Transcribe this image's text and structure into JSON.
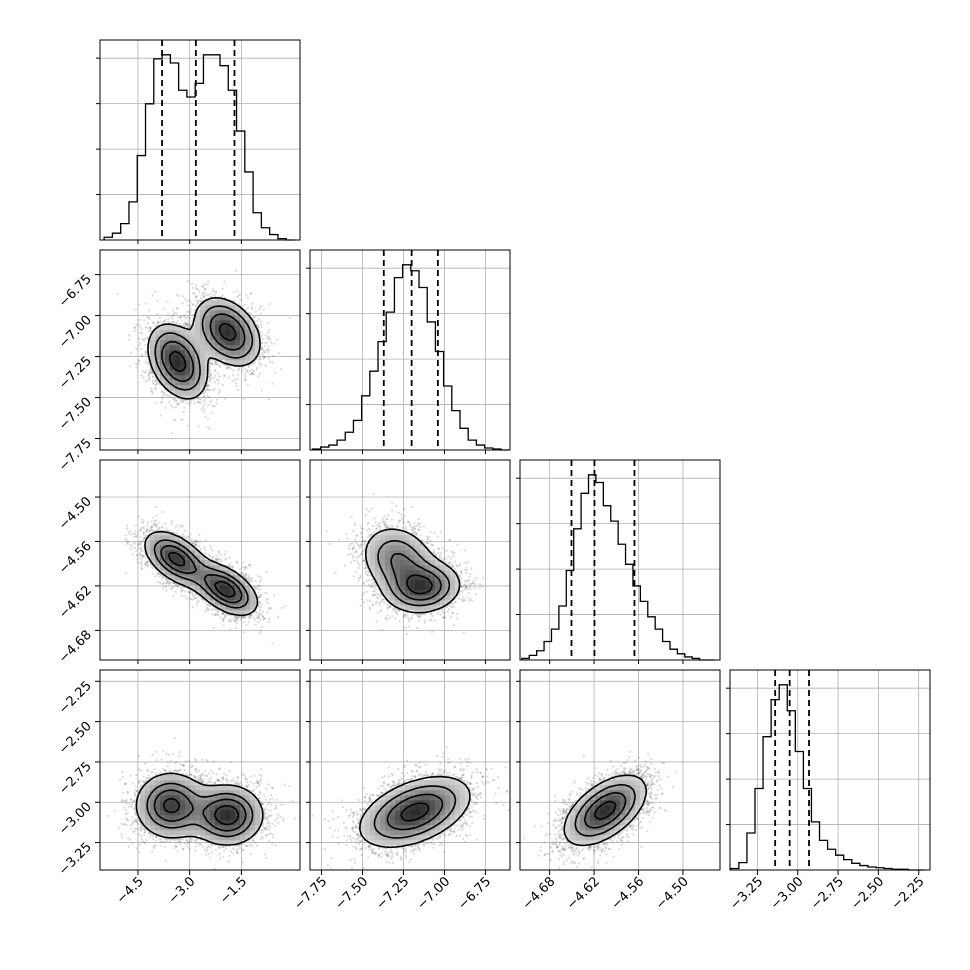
{
  "chart_data": {
    "type": "corner",
    "grid": true,
    "parameters": [
      {
        "range": [
          -5.6,
          0.2
        ],
        "ticks": [
          -4.5,
          -3.0,
          -1.5
        ],
        "tick_labels": [
          "−4.5",
          "−3.0",
          "−1.5"
        ],
        "quantiles": [
          -3.8,
          -2.82,
          -1.7
        ],
        "hist_bin_centers": [
          -5.36,
          -5.12,
          -4.88,
          -4.64,
          -4.4,
          -4.16,
          -3.92,
          -3.68,
          -3.44,
          -3.2,
          -2.96,
          -2.72,
          -2.48,
          -2.24,
          -2.0,
          -1.76,
          -1.52,
          -1.28,
          -1.04,
          -0.8,
          -0.56,
          -0.32,
          -0.08
        ],
        "hist_counts": [
          2,
          5,
          12,
          28,
          62,
          100,
          133,
          136,
          130,
          110,
          105,
          115,
          136,
          136,
          128,
          110,
          80,
          50,
          20,
          9,
          4,
          1,
          0
        ]
      },
      {
        "range": [
          -7.82,
          -6.6
        ],
        "ticks": [
          -7.75,
          -7.5,
          -7.25,
          -7.0,
          -6.75
        ],
        "tick_labels": [
          "−7.75",
          "−7.50",
          "−7.25",
          "−7.00",
          "−6.75"
        ],
        "quantiles": [
          -7.37,
          -7.2,
          -7.04
        ],
        "hist_bin_centers": [
          -7.78,
          -7.73,
          -7.68,
          -7.63,
          -7.58,
          -7.53,
          -7.48,
          -7.43,
          -7.38,
          -7.33,
          -7.28,
          -7.23,
          -7.18,
          -7.13,
          -7.08,
          -7.03,
          -6.98,
          -6.93,
          -6.88,
          -6.83,
          -6.78,
          -6.73,
          -6.68,
          -6.63
        ],
        "hist_counts": [
          1,
          3,
          5,
          10,
          18,
          30,
          55,
          80,
          110,
          140,
          175,
          188,
          182,
          165,
          130,
          100,
          65,
          40,
          22,
          10,
          5,
          2,
          1,
          0
        ]
      },
      {
        "range": [
          -4.72,
          -4.45
        ],
        "ticks": [
          -4.68,
          -4.62,
          -4.56,
          -4.5
        ],
        "tick_labels": [
          "−4.68",
          "−4.62",
          "−4.56",
          "−4.50"
        ],
        "quantiles": [
          -4.6505,
          -4.6195,
          -4.5655
        ],
        "hist_bin_centers": [
          -4.7125,
          -4.7025,
          -4.6925,
          -4.6825,
          -4.6725,
          -4.6625,
          -4.6525,
          -4.6425,
          -4.6325,
          -4.6225,
          -4.6125,
          -4.6025,
          -4.5925,
          -4.5825,
          -4.5725,
          -4.5625,
          -4.5525,
          -4.5425,
          -4.5325,
          -4.5225,
          -4.5125,
          -4.5025,
          -4.4925,
          -4.4825,
          -4.4725,
          -4.4625
        ],
        "hist_counts": [
          1,
          3,
          6,
          12,
          20,
          35,
          58,
          85,
          108,
          120,
          115,
          100,
          90,
          75,
          62,
          48,
          38,
          28,
          20,
          12,
          7,
          4,
          2,
          1,
          0,
          0
        ]
      },
      {
        "range": [
          -3.42,
          -2.18
        ],
        "ticks": [
          -3.25,
          -3.0,
          -2.75,
          -2.5,
          -2.25
        ],
        "tick_labels": [
          "−3.25",
          "−3.00",
          "−2.75",
          "−2.50",
          "−2.25"
        ],
        "quantiles": [
          -3.14,
          -3.05,
          -2.93
        ],
        "hist_bin_centers": [
          -3.39,
          -3.34,
          -3.29,
          -3.24,
          -3.19,
          -3.14,
          -3.09,
          -3.04,
          -2.99,
          -2.94,
          -2.89,
          -2.84,
          -2.79,
          -2.74,
          -2.69,
          -2.64,
          -2.59,
          -2.54,
          -2.49,
          -2.44,
          -2.39,
          -2.34,
          -2.29,
          -2.24
        ],
        "hist_counts": [
          2,
          10,
          50,
          110,
          180,
          230,
          250,
          215,
          160,
          110,
          65,
          40,
          28,
          20,
          14,
          9,
          6,
          4,
          3,
          2,
          1,
          1,
          0,
          0
        ]
      }
    ],
    "pairs": [
      {
        "x": 0,
        "y": 1,
        "modes": [
          {
            "mx": -3.35,
            "my": -7.28,
            "sx": 0.45,
            "sy": 0.12,
            "rho": -0.35,
            "w": 0.5
          },
          {
            "mx": -1.9,
            "my": -7.1,
            "sx": 0.5,
            "sy": 0.11,
            "rho": -0.35,
            "w": 0.5
          }
        ]
      },
      {
        "x": 0,
        "y": 2,
        "modes": [
          {
            "mx": -3.4,
            "my": -4.583,
            "sx": 0.5,
            "sy": 0.02,
            "rho": -0.5,
            "w": 0.5
          },
          {
            "mx": -1.95,
            "my": -4.625,
            "sx": 0.5,
            "sy": 0.019,
            "rho": -0.5,
            "w": 0.5
          }
        ]
      },
      {
        "x": 1,
        "y": 2,
        "modes": [
          {
            "mx": -7.28,
            "my": -4.585,
            "sx": 0.12,
            "sy": 0.025,
            "rho": -0.2,
            "w": 0.5
          },
          {
            "mx": -7.13,
            "my": -4.622,
            "sx": 0.12,
            "sy": 0.018,
            "rho": 0.1,
            "w": 0.5
          }
        ]
      },
      {
        "x": 0,
        "y": 3,
        "modes": [
          {
            "mx": -3.55,
            "my": -3.02,
            "sx": 0.55,
            "sy": 0.11,
            "rho": 0.0,
            "w": 0.5
          },
          {
            "mx": -1.9,
            "my": -3.08,
            "sx": 0.55,
            "sy": 0.1,
            "rho": 0.0,
            "w": 0.5
          }
        ]
      },
      {
        "x": 1,
        "y": 3,
        "modes": [
          {
            "mx": -7.18,
            "my": -3.06,
            "sx": 0.17,
            "sy": 0.11,
            "rho": 0.45,
            "w": 1.0
          }
        ]
      },
      {
        "x": 2,
        "y": 3,
        "modes": [
          {
            "mx": -4.605,
            "my": -3.05,
            "sx": 0.028,
            "sy": 0.11,
            "rho": 0.55,
            "w": 1.0
          }
        ]
      }
    ]
  }
}
